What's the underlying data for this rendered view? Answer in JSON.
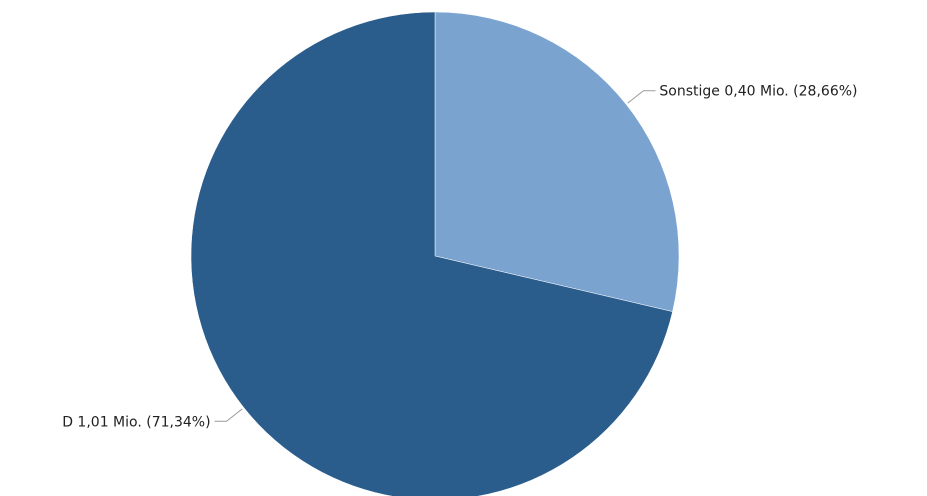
{
  "chart_data": {
    "type": "pie",
    "slices": [
      {
        "label": "Sonstige",
        "value": 0.4,
        "percent": 28.66,
        "text": "Sonstige 0,40 Mio. (28,66%)",
        "color": "#7aa3d0"
      },
      {
        "label": "D",
        "value": 1.01,
        "percent": 71.34,
        "text": "D 1,01 Mio. (71,34%)",
        "color": "#2a5d8c"
      }
    ],
    "start_angle_deg": 0,
    "direction": "clockwise",
    "legend": "none"
  }
}
